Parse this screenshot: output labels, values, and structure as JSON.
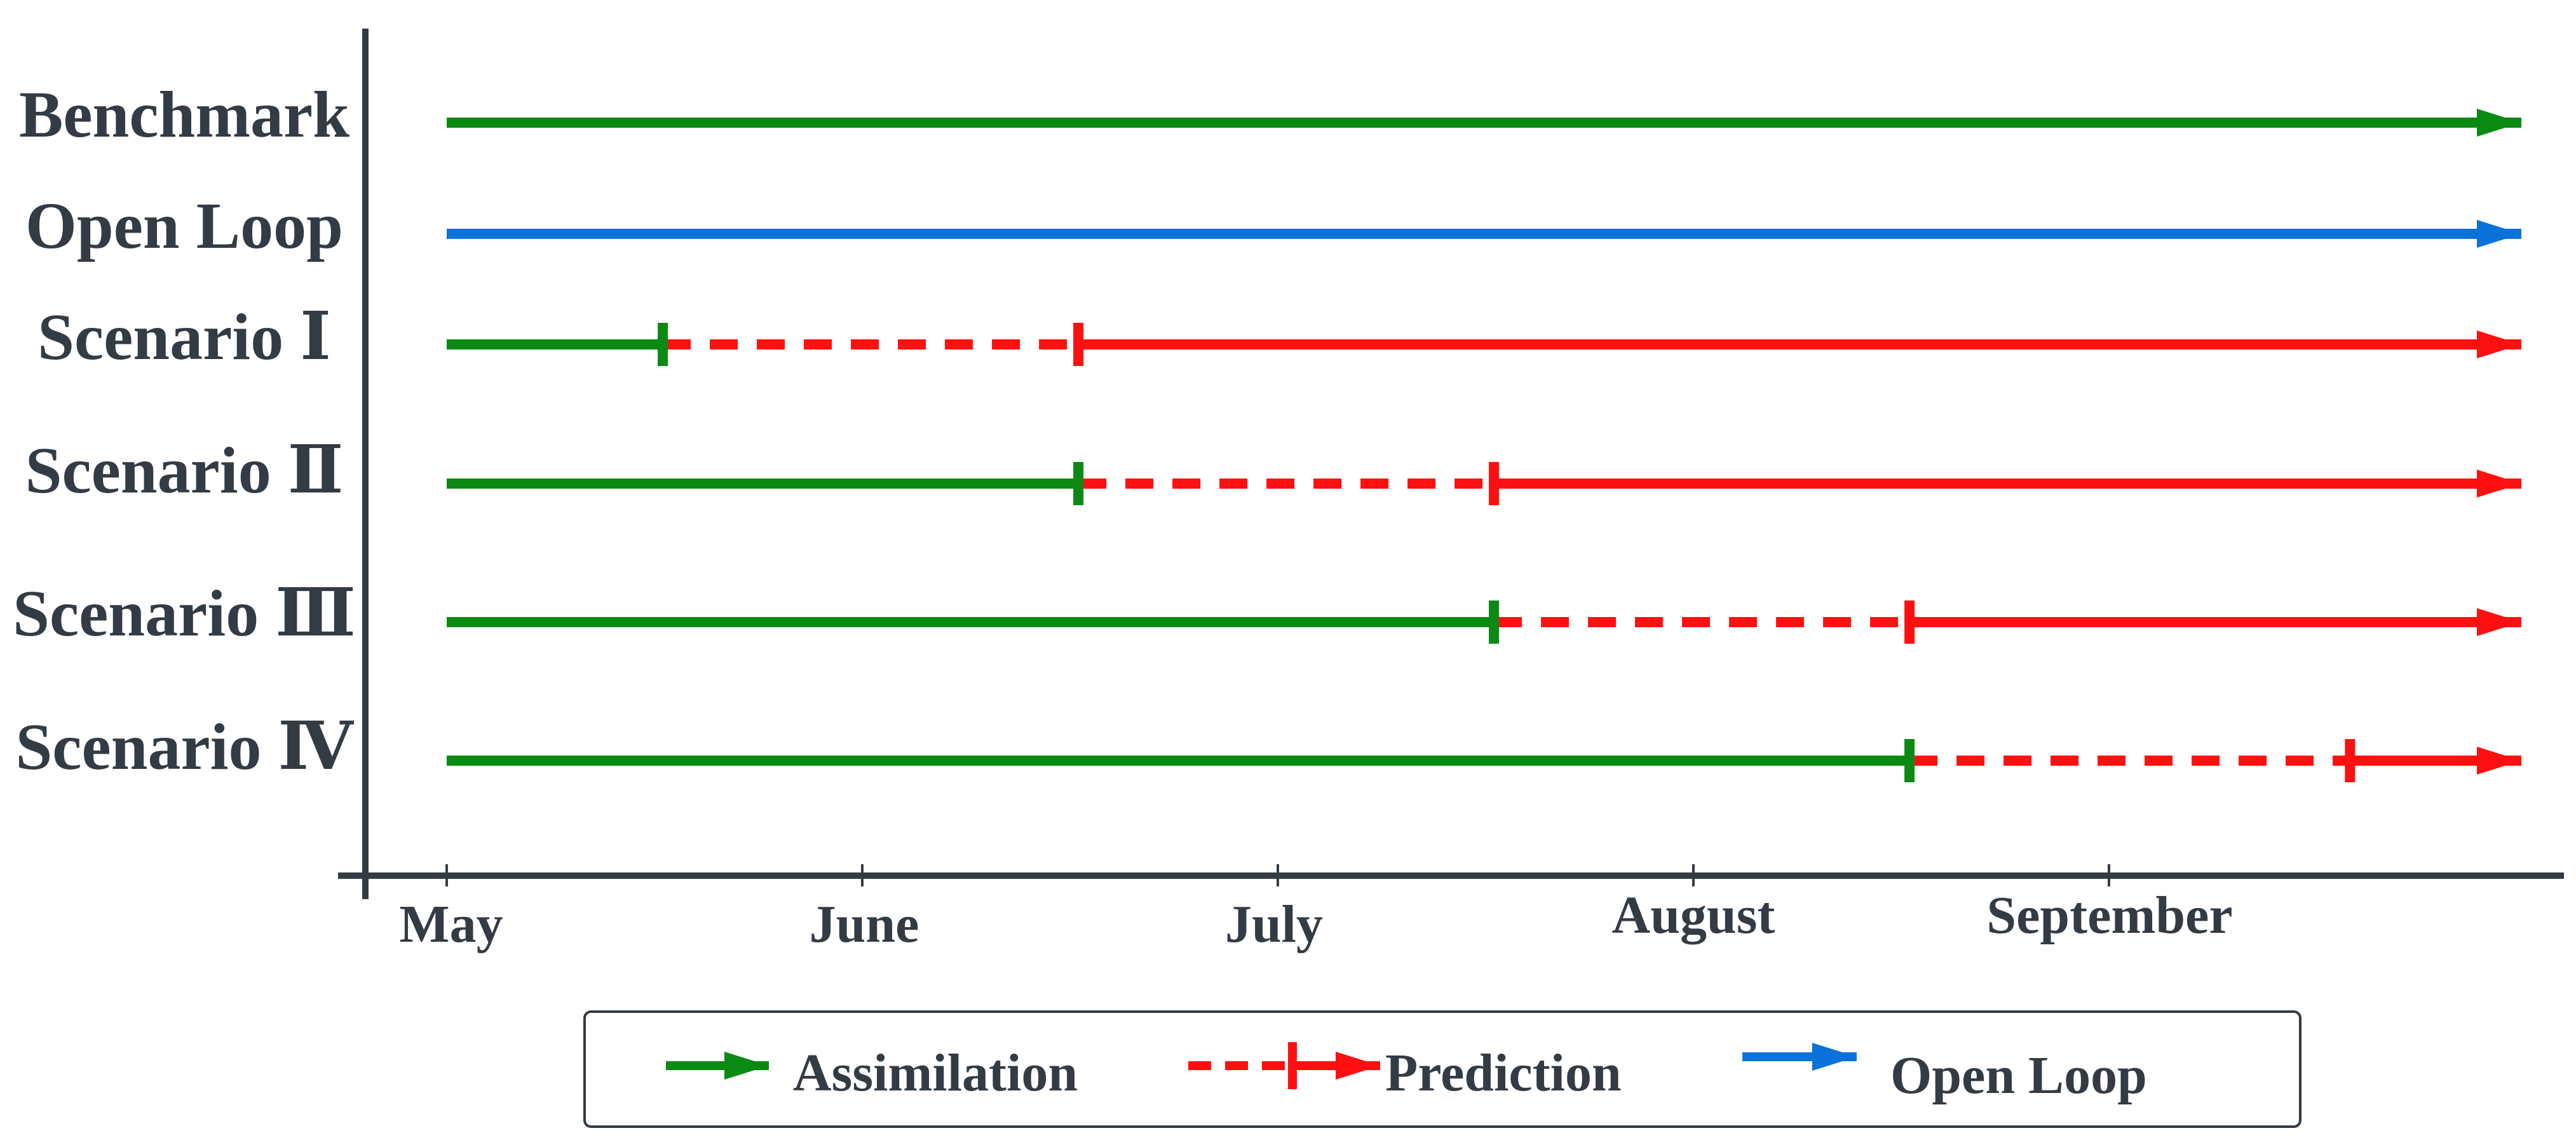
{
  "colors": {
    "assimilation": "#0a8a12",
    "prediction": "#ff1010",
    "open_loop": "#0a72d8",
    "axis": "#333b44",
    "text": "#333b44"
  },
  "timeline": {
    "start_month": "May",
    "end_month": "September",
    "months": [
      "May",
      "June",
      "July",
      "August",
      "September"
    ]
  },
  "rows": [
    {
      "label": "Benchmark",
      "segments": [
        {
          "type": "assimilation",
          "from": 0,
          "to": 5
        }
      ],
      "markers": []
    },
    {
      "label": "Open Loop",
      "segments": [
        {
          "type": "open_loop",
          "from": 0,
          "to": 5
        }
      ],
      "markers": []
    },
    {
      "label": "Scenario Ⅰ",
      "segments": [
        {
          "type": "assimilation",
          "from": 0,
          "to": 0.52
        },
        {
          "type": "prediction_dashed",
          "from": 0.52,
          "to": 1.52
        },
        {
          "type": "prediction",
          "from": 1.52,
          "to": 5
        }
      ],
      "markers": [
        {
          "at": 0.52,
          "type": "assimilation"
        },
        {
          "at": 1.52,
          "type": "prediction"
        }
      ]
    },
    {
      "label": "Scenario Ⅱ",
      "segments": [
        {
          "type": "assimilation",
          "from": 0,
          "to": 1.52
        },
        {
          "type": "prediction_dashed",
          "from": 1.52,
          "to": 2.52
        },
        {
          "type": "prediction",
          "from": 2.52,
          "to": 5
        }
      ],
      "markers": [
        {
          "at": 1.52,
          "type": "assimilation"
        },
        {
          "at": 2.52,
          "type": "prediction"
        }
      ]
    },
    {
      "label": "Scenario Ⅲ",
      "segments": [
        {
          "type": "assimilation",
          "from": 0,
          "to": 2.52
        },
        {
          "type": "prediction_dashed",
          "from": 2.52,
          "to": 3.52
        },
        {
          "type": "prediction",
          "from": 3.52,
          "to": 5
        }
      ],
      "markers": [
        {
          "at": 2.52,
          "type": "assimilation"
        },
        {
          "at": 3.52,
          "type": "prediction"
        }
      ]
    },
    {
      "label": "Scenario Ⅳ",
      "segments": [
        {
          "type": "assimilation",
          "from": 0,
          "to": 3.52
        },
        {
          "type": "prediction_dashed",
          "from": 3.52,
          "to": 4.58
        },
        {
          "type": "prediction",
          "from": 4.58,
          "to": 5
        }
      ],
      "markers": [
        {
          "at": 3.52,
          "type": "assimilation"
        },
        {
          "at": 4.58,
          "type": "prediction"
        }
      ]
    }
  ],
  "legend": {
    "position": "bottom-center",
    "items": [
      {
        "label": "Assimilation",
        "symbol": "assimilation-arrow"
      },
      {
        "label": "Prediction",
        "symbol": "prediction-arrow"
      },
      {
        "label": "Open Loop",
        "symbol": "open-loop-arrow"
      }
    ]
  }
}
